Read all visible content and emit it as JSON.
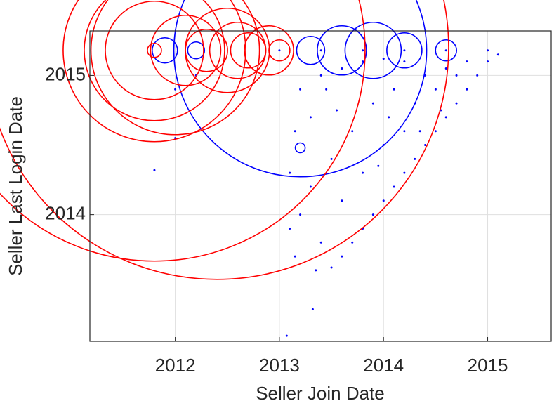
{
  "chart_data": {
    "type": "scatter",
    "x_label": "Seller Join Date",
    "y_label": "Seller Last Login Date",
    "xlim": [
      2011.18,
      2015.61
    ],
    "ylim": [
      2013.09,
      2015.32
    ],
    "xticks": [
      2012,
      2013,
      2014,
      2015
    ],
    "yticks": [
      2014,
      2015
    ],
    "grid": true,
    "series": [
      {
        "color": "#0000ff",
        "x": [
          2013.1,
          2013.1,
          2013.15,
          2013.07,
          2013.32,
          2011.8,
          2012.0,
          2012.0,
          2012.2,
          2013.5,
          2013.6,
          2013.7,
          2013.8,
          2013.9,
          2014.0,
          2014.1,
          2014.2,
          2014.3,
          2014.4,
          2014.5,
          2014.6,
          2014.7,
          2014.8,
          2014.9,
          2015.0,
          2015.1,
          2013.2,
          2013.3,
          2013.4,
          2013.3,
          2013.5,
          2013.6,
          2013.7,
          2013.8,
          2013.9,
          2014.0,
          2014.1,
          2014.2,
          2014.3,
          2014.4,
          2014.5,
          2014.6,
          2014.7,
          2014.8,
          2013.2,
          2013.4,
          2013.6,
          2013.8,
          2014.0,
          2014.2,
          2013.15,
          2013.35,
          2013.45,
          2013.55,
          2013.95,
          2014.05,
          2014.35,
          2014.55,
          2013.0,
          2013.4,
          2013.8,
          2014.2,
          2014.6,
          2015.0,
          2013.3,
          2013.6,
          2013.9,
          2014.2,
          2014.6,
          2011.9,
          2012.2,
          2013.2,
          2013.2
        ],
        "y": [
          2013.9,
          2014.3,
          2014.6,
          2013.13,
          2013.32,
          2014.32,
          2014.55,
          2014.9,
          2015.0,
          2013.62,
          2013.7,
          2013.8,
          2013.9,
          2014.0,
          2014.1,
          2014.2,
          2014.3,
          2014.4,
          2014.5,
          2014.6,
          2014.7,
          2014.8,
          2014.9,
          2015.0,
          2015.1,
          2015.15,
          2014.0,
          2014.2,
          2013.8,
          2014.7,
          2014.4,
          2014.1,
          2014.6,
          2014.3,
          2014.8,
          2014.5,
          2014.9,
          2014.6,
          2014.8,
          2015.0,
          2014.9,
          2015.05,
          2015.0,
          2015.1,
          2014.9,
          2015.0,
          2015.05,
          2015.1,
          2015.12,
          2015.1,
          2013.7,
          2013.6,
          2014.9,
          2014.75,
          2014.35,
          2014.7,
          2014.6,
          2014.75,
          2015.18,
          2015.18,
          2015.18,
          2015.18,
          2015.18,
          2015.18,
          2015.18,
          2015.18,
          2015.18,
          2015.18,
          2015.18,
          2015.18,
          2015.18,
          2014.48,
          2015.18
        ],
        "size": [
          1.5,
          1.5,
          1.5,
          1.5,
          1.5,
          1.5,
          1.5,
          1.5,
          1.5,
          1.5,
          1.5,
          1.5,
          1.5,
          1.5,
          1.5,
          1.5,
          1.5,
          1.5,
          1.5,
          1.5,
          1.5,
          1.5,
          1.5,
          1.5,
          1.5,
          1.5,
          1.5,
          1.5,
          1.5,
          1.5,
          1.5,
          1.5,
          1.5,
          1.5,
          1.5,
          1.5,
          1.5,
          1.5,
          1.5,
          1.5,
          1.5,
          1.5,
          1.5,
          1.5,
          1.5,
          1.5,
          1.5,
          1.5,
          1.5,
          1.5,
          1.5,
          1.5,
          1.5,
          1.5,
          1.5,
          1.5,
          1.5,
          1.5,
          1.5,
          1.5,
          1.5,
          1.5,
          1.5,
          1.5,
          20,
          35,
          40,
          25,
          15,
          18,
          12,
          7,
          180
        ]
      },
      {
        "color": "#ff0000",
        "x": [
          2011.8,
          2011.8,
          2011.8,
          2011.8,
          2011.8,
          2012.1,
          2012.3,
          2012.0,
          2012.5,
          2012.6,
          2012.7,
          2012.9,
          2013.0,
          2012.4
        ],
        "y": [
          2015.18,
          2015.18,
          2015.18,
          2015.18,
          2015.18,
          2015.18,
          2015.18,
          2015.18,
          2015.18,
          2015.18,
          2015.18,
          2015.18,
          2015.18,
          2015.2
        ],
        "size": [
          300,
          130,
          100,
          70,
          10,
          50,
          30,
          120,
          60,
          40,
          25,
          35,
          15,
          330
        ]
      }
    ]
  }
}
